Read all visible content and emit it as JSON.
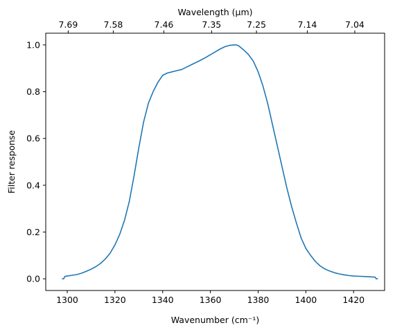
{
  "chart_data": {
    "type": "line",
    "xlabel": "Wavenumber (cm⁻¹)",
    "ylabel": "Filter response",
    "xlabel_top": "Wavelength (μm)",
    "xlim": [
      1291,
      1433
    ],
    "ylim": [
      -0.05,
      1.05
    ],
    "x_ticks": [
      1300,
      1320,
      1340,
      1360,
      1380,
      1400,
      1420
    ],
    "y_ticks": [
      0.0,
      0.2,
      0.4,
      0.6,
      0.8,
      1.0
    ],
    "y_tick_labels": [
      "0.0",
      "0.2",
      "0.4",
      "0.6",
      "0.8",
      "1.0"
    ],
    "top_ticks": [
      {
        "label": "7.69",
        "x": 1300.4
      },
      {
        "label": "7.58",
        "x": 1319.3
      },
      {
        "label": "7.46",
        "x": 1340.5
      },
      {
        "label": "7.35",
        "x": 1360.5
      },
      {
        "label": "7.25",
        "x": 1379.3
      },
      {
        "label": "7.14",
        "x": 1400.6
      },
      {
        "label": "7.04",
        "x": 1420.5
      }
    ],
    "grid": false,
    "series": [
      {
        "color": "#1f77b4",
        "x": [
          1298,
          1298.5,
          1299,
          1300,
          1302,
          1304,
          1306,
          1308,
          1310,
          1312,
          1314,
          1316,
          1318,
          1320,
          1322,
          1324,
          1326,
          1328,
          1330,
          1332,
          1334,
          1336,
          1338,
          1340,
          1342,
          1344,
          1346,
          1348,
          1350,
          1352,
          1354,
          1356,
          1358,
          1360,
          1362,
          1364,
          1366,
          1368,
          1370,
          1371,
          1372,
          1374,
          1376,
          1378,
          1380,
          1382,
          1384,
          1386,
          1388,
          1390,
          1392,
          1394,
          1396,
          1398,
          1400,
          1402,
          1404,
          1406,
          1408,
          1410,
          1412,
          1414,
          1416,
          1418,
          1420,
          1422,
          1424,
          1426,
          1428,
          1429,
          1429.5,
          1430
        ],
        "values": [
          0.0,
          0.0,
          0.01,
          0.012,
          0.015,
          0.018,
          0.024,
          0.032,
          0.041,
          0.052,
          0.066,
          0.085,
          0.11,
          0.145,
          0.19,
          0.25,
          0.33,
          0.44,
          0.56,
          0.67,
          0.75,
          0.8,
          0.84,
          0.87,
          0.88,
          0.885,
          0.89,
          0.895,
          0.905,
          0.915,
          0.925,
          0.935,
          0.946,
          0.958,
          0.97,
          0.982,
          0.992,
          0.998,
          1.0,
          1.0,
          0.995,
          0.978,
          0.958,
          0.93,
          0.885,
          0.825,
          0.75,
          0.66,
          0.57,
          0.48,
          0.39,
          0.31,
          0.24,
          0.175,
          0.13,
          0.1,
          0.074,
          0.055,
          0.042,
          0.033,
          0.026,
          0.021,
          0.017,
          0.014,
          0.012,
          0.011,
          0.01,
          0.009,
          0.008,
          0.007,
          0.0,
          0.0
        ]
      }
    ]
  }
}
